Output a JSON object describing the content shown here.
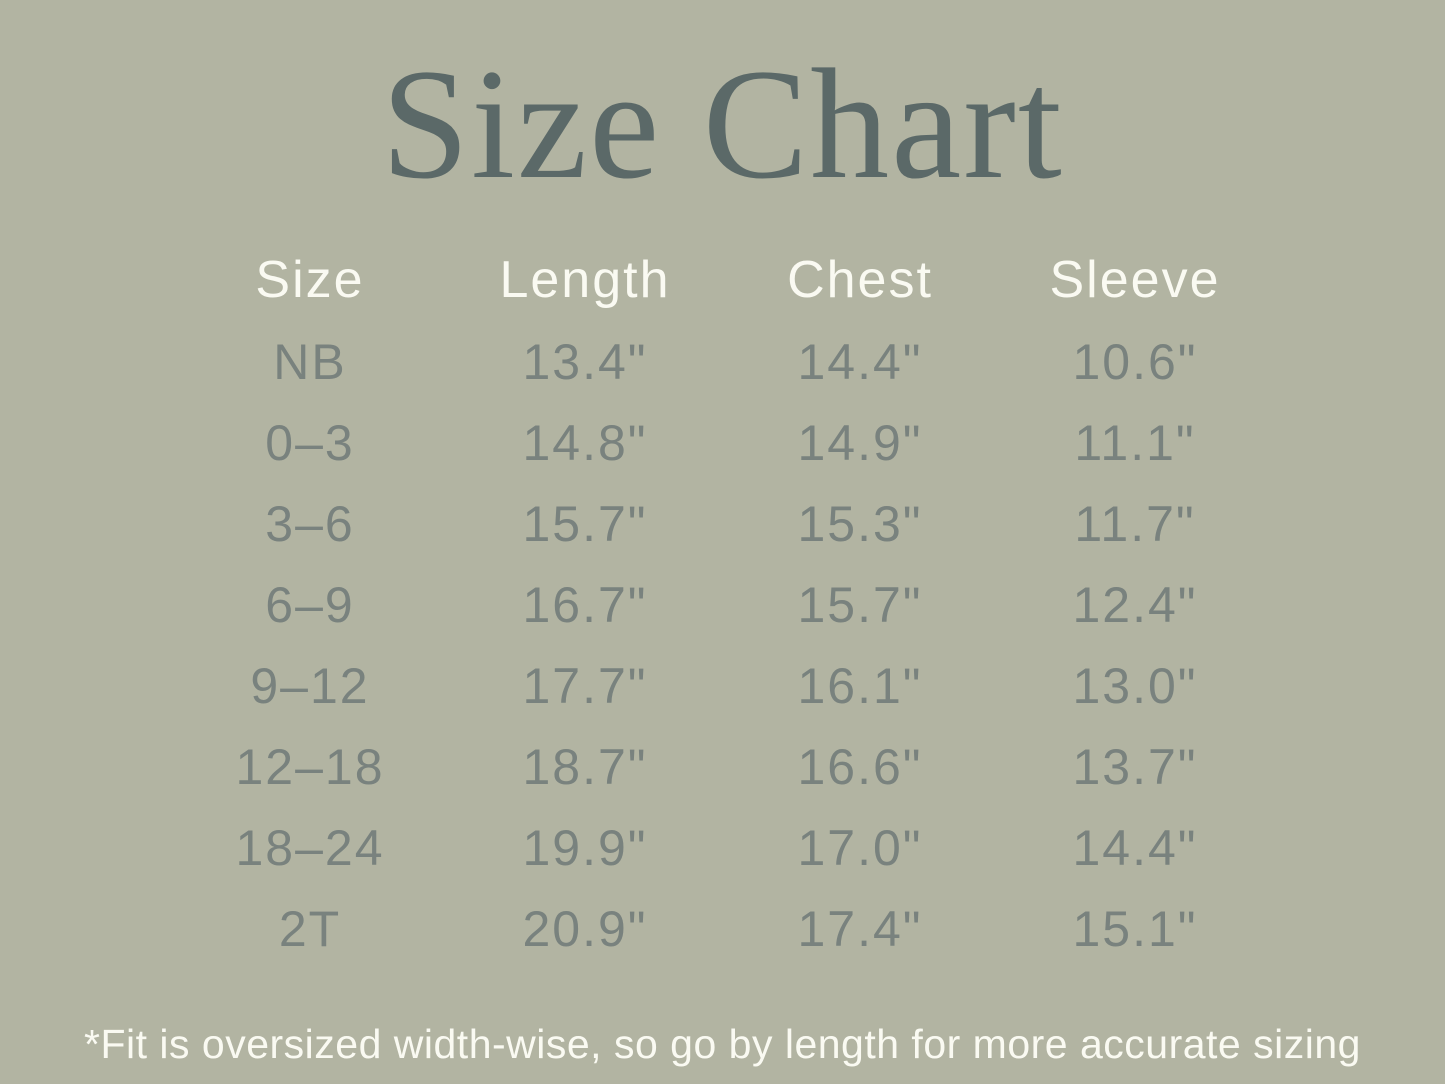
{
  "title": "Size Chart",
  "table": {
    "headers": [
      "Size",
      "Length",
      "Chest",
      "Sleeve"
    ],
    "rows": [
      [
        "NB",
        "13.4\"",
        "14.4\"",
        "10.6\""
      ],
      [
        "0–3",
        "14.8\"",
        "14.9\"",
        "11.1\""
      ],
      [
        "3–6",
        "15.7\"",
        "15.3\"",
        "11.7\""
      ],
      [
        "6–9",
        "16.7\"",
        "15.7\"",
        "12.4\""
      ],
      [
        "9–12",
        "17.7\"",
        "16.1\"",
        "13.0\""
      ],
      [
        "12–18",
        "18.7\"",
        "16.6\"",
        "13.7\""
      ],
      [
        "18–24",
        "19.9\"",
        "17.0\"",
        "14.4\""
      ],
      [
        "2T",
        "20.9\"",
        "17.4\"",
        "15.1\""
      ]
    ]
  },
  "footnote": "*Fit is oversized width-wise, so go by length for more accurate sizing",
  "colors": {
    "background": "#b2b4a2",
    "title_text": "#5b6968",
    "data_text": "#79827e",
    "light_text": "#fafaf2"
  },
  "chart_data": {
    "type": "table",
    "title": "Size Chart",
    "columns": [
      "Size",
      "Length",
      "Chest",
      "Sleeve"
    ],
    "rows": [
      {
        "size": "NB",
        "length_in": 13.4,
        "chest_in": 14.4,
        "sleeve_in": 10.6
      },
      {
        "size": "0–3",
        "length_in": 14.8,
        "chest_in": 14.9,
        "sleeve_in": 11.1
      },
      {
        "size": "3–6",
        "length_in": 15.7,
        "chest_in": 15.3,
        "sleeve_in": 11.7
      },
      {
        "size": "6–9",
        "length_in": 16.7,
        "chest_in": 15.7,
        "sleeve_in": 12.4
      },
      {
        "size": "9–12",
        "length_in": 17.7,
        "chest_in": 16.1,
        "sleeve_in": 13.0
      },
      {
        "size": "12–18",
        "length_in": 18.7,
        "chest_in": 16.6,
        "sleeve_in": 13.7
      },
      {
        "size": "18–24",
        "length_in": 19.9,
        "chest_in": 17.0,
        "sleeve_in": 14.4
      },
      {
        "size": "2T",
        "length_in": 20.9,
        "chest_in": 17.4,
        "sleeve_in": 15.1
      }
    ],
    "units": "inches",
    "note": "*Fit is oversized width-wise, so go by length for more accurate sizing"
  }
}
